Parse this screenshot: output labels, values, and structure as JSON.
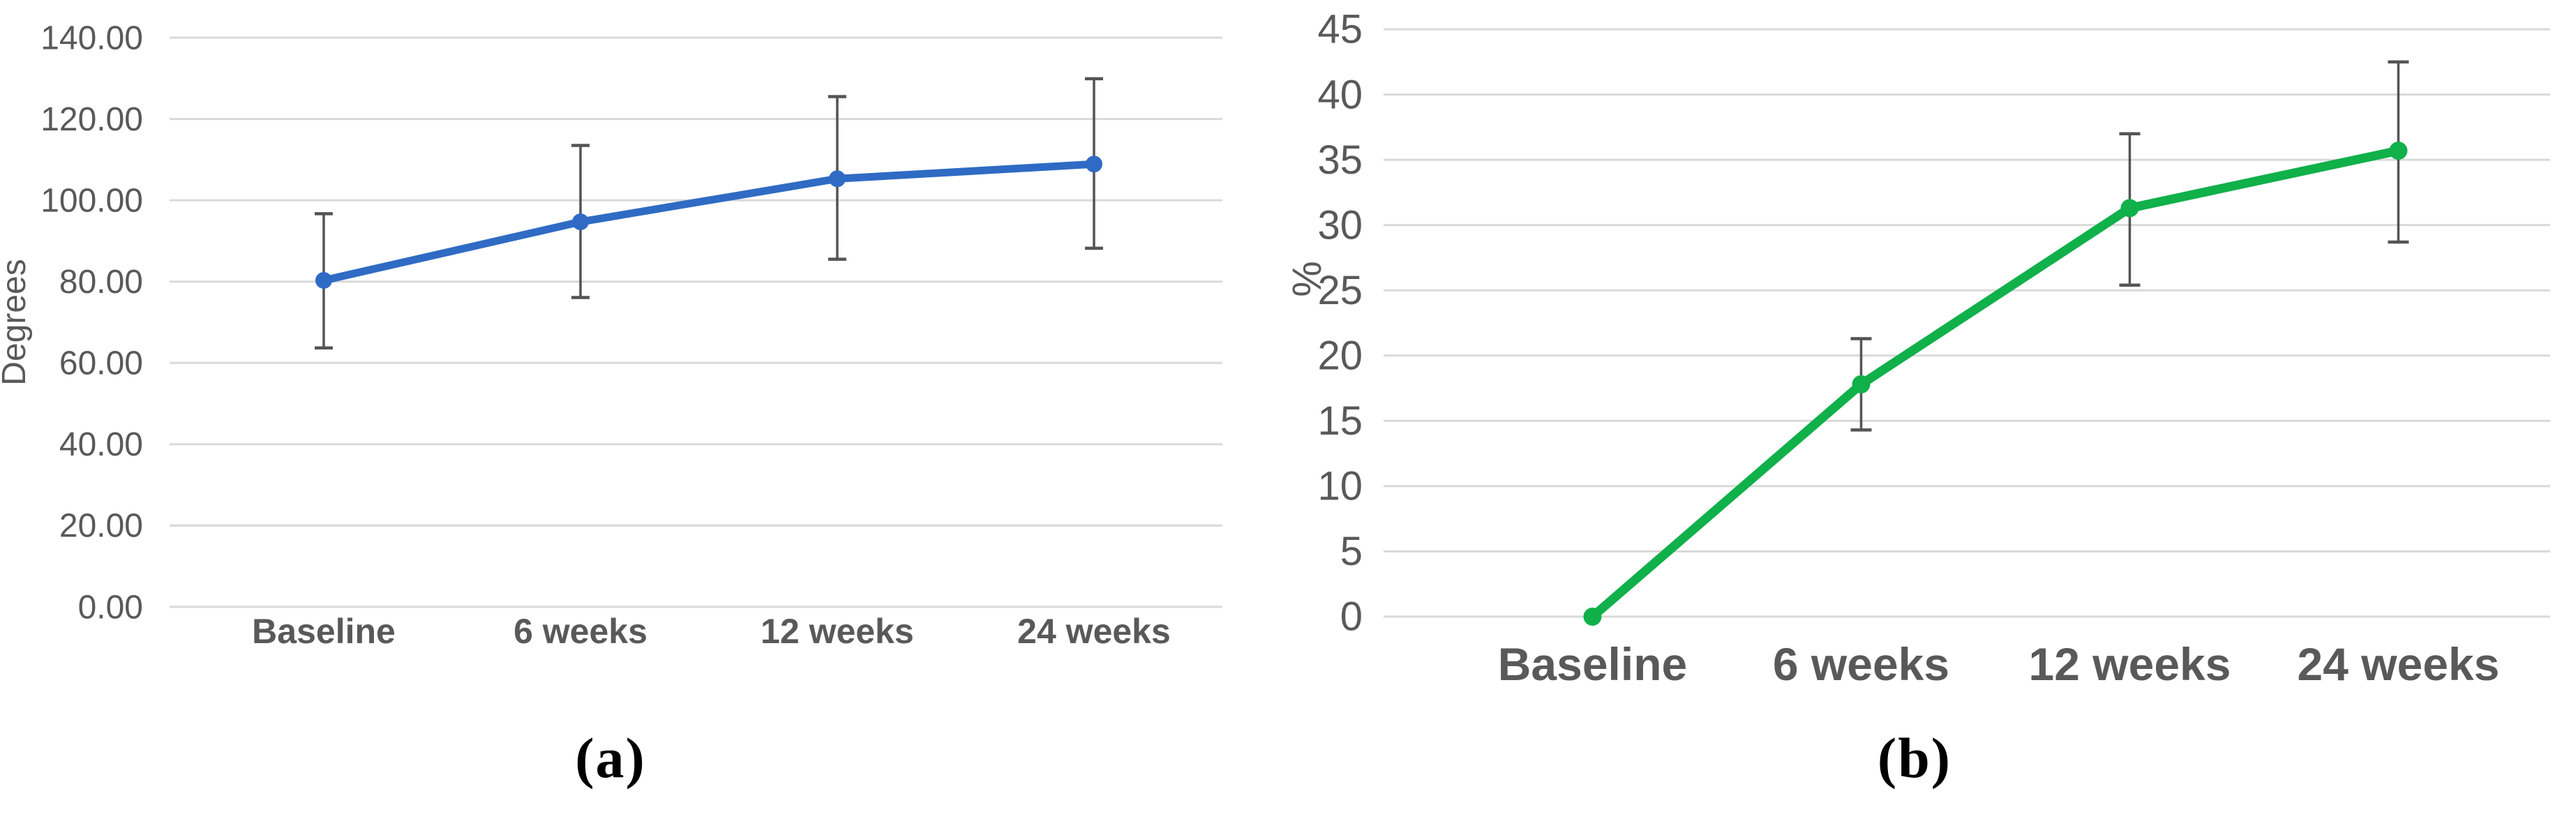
{
  "colors": {
    "background": "#ffffff",
    "gridline": "#d9d9d9",
    "axis_text": "#595959",
    "error_bar": "#545454",
    "panel_a_line": "#2f6bc4",
    "panel_b_line": "#10b04a",
    "caption_text": "#000000"
  },
  "chart_data": [
    {
      "panel": "a",
      "type": "line",
      "caption": "(a)",
      "title": "",
      "xlabel": "",
      "ylabel": "Degrees",
      "categories": [
        "Baseline",
        "6 weeks",
        "12 weeks",
        "24 weeks"
      ],
      "series": [
        {
          "name": "Degrees",
          "values": [
            80.3,
            94.7,
            105.3,
            108.9
          ]
        }
      ],
      "error_low": [
        63.7,
        76.1,
        85.5,
        88.2
      ],
      "error_high": [
        96.7,
        113.5,
        125.5,
        129.9
      ],
      "ylim": [
        0,
        140
      ],
      "ytick_step": 20,
      "ytick_decimals": 2,
      "ytick_labels": [
        "0.00",
        "20.00",
        "40.00",
        "60.00",
        "80.00",
        "100.00",
        "120.00",
        "140.00"
      ],
      "grid": true,
      "legend_position": "none",
      "line_color": "#2f6bc4"
    },
    {
      "panel": "b",
      "type": "line",
      "caption": "(b)",
      "title": "",
      "xlabel": "",
      "ylabel": "%",
      "categories": [
        "Baseline",
        "6 weeks",
        "12 weeks",
        "24 weeks"
      ],
      "series": [
        {
          "name": "%",
          "values": [
            0,
            17.8,
            31.3,
            35.7
          ]
        }
      ],
      "error_low": [
        null,
        14.3,
        25.4,
        28.7
      ],
      "error_high": [
        null,
        21.3,
        37.0,
        42.5
      ],
      "ylim": [
        0,
        45
      ],
      "ytick_step": 5,
      "ytick_decimals": 0,
      "ytick_labels": [
        "0",
        "5",
        "10",
        "15",
        "20",
        "25",
        "30",
        "35",
        "40",
        "45"
      ],
      "grid": true,
      "legend_position": "none",
      "line_color": "#10b04a"
    }
  ]
}
